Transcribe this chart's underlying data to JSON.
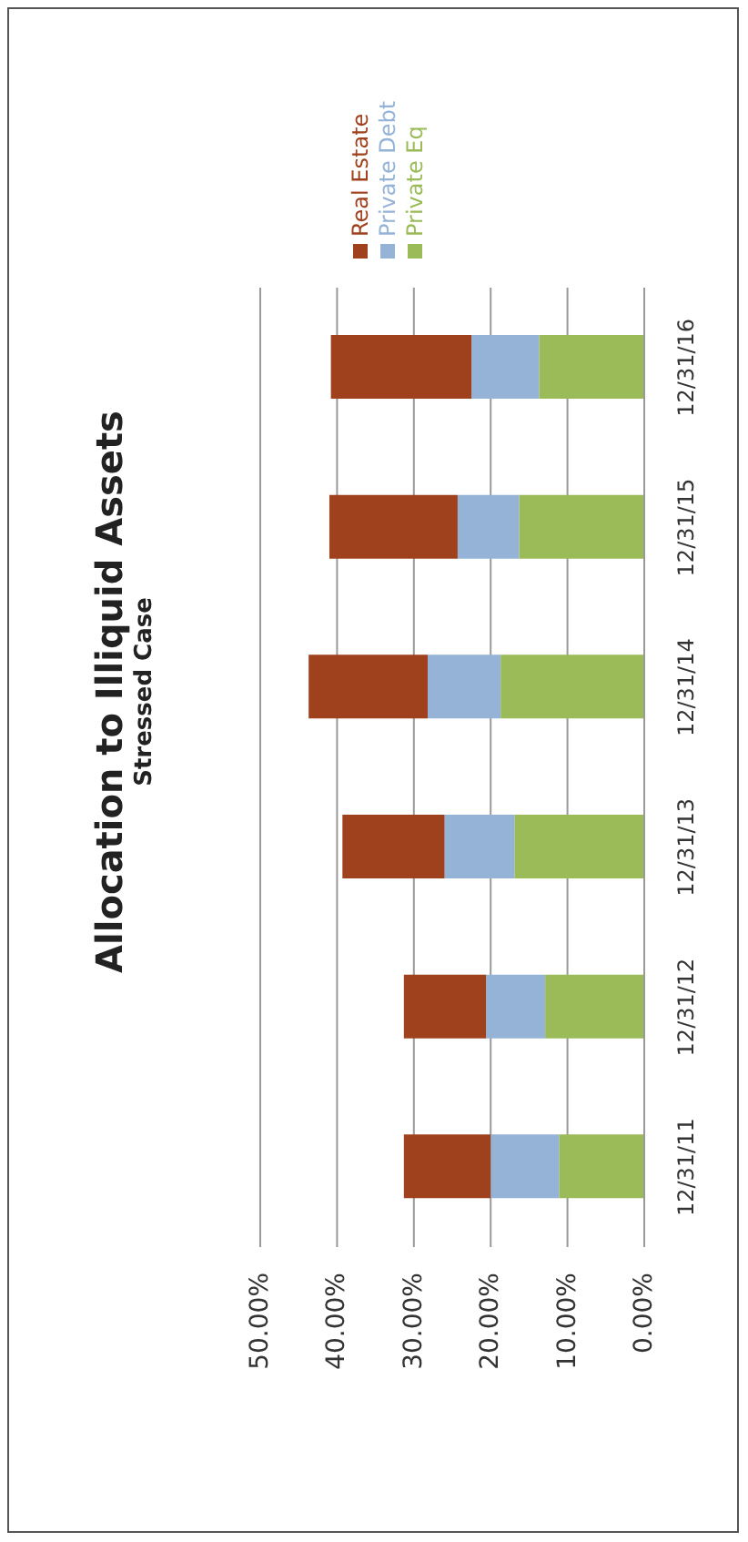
{
  "chart_data": {
    "type": "bar",
    "title": "Allocation to Illiquid Assets",
    "subtitle": "Stressed Case",
    "orientation": "horizontal",
    "categories": [
      "12/31/16",
      "12/31/15",
      "12/31/14",
      "12/31/13",
      "12/31/12",
      "12/31/11"
    ],
    "stacked": true,
    "series": [
      {
        "name": "Private Eq",
        "color": "#9bbb59",
        "values": [
          13.7,
          16.3,
          18.7,
          16.9,
          12.9,
          11.1
        ]
      },
      {
        "name": "Private Debt",
        "color": "#95b3d7",
        "values": [
          8.8,
          8.0,
          9.5,
          9.1,
          7.7,
          8.9
        ]
      },
      {
        "name": "Real Estate",
        "color": "#a0411e",
        "values": [
          18.3,
          16.7,
          15.5,
          13.3,
          10.7,
          11.3
        ]
      }
    ],
    "xlim": [
      50,
      0
    ],
    "xticks": [
      {
        "value": 50,
        "label": "50.00%"
      },
      {
        "value": 40,
        "label": "40.00%"
      },
      {
        "value": 30,
        "label": "30.00%"
      },
      {
        "value": 20,
        "label": "20.00%"
      },
      {
        "value": 10,
        "label": "10.00%"
      },
      {
        "value": 0,
        "label": "0.00%"
      }
    ],
    "grid": "x",
    "legend": "top left"
  }
}
